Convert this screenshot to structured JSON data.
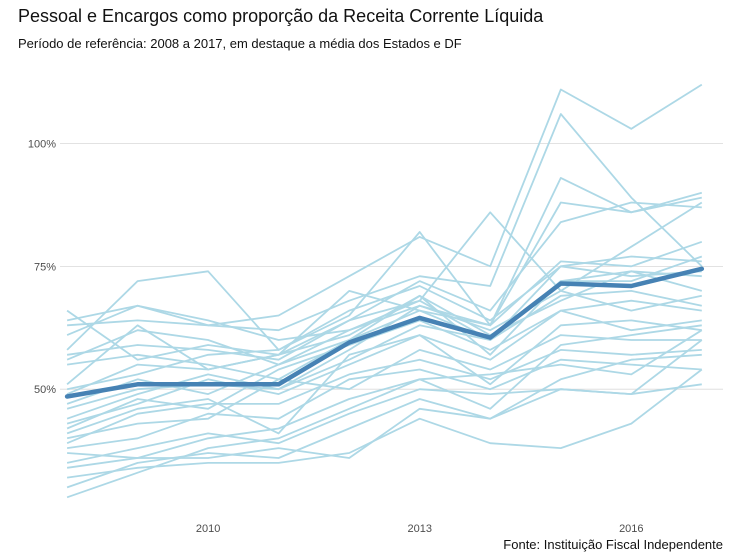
{
  "chart_data": {
    "type": "line",
    "title": "Pessoal e Encargos como proporção da Receita Corrente Líquida",
    "subtitle": "Período de referência: 2008 a 2017, em destaque a média dos Estados e DF",
    "caption": "Fonte: Instituição Fiscal Independente",
    "xlabel": "",
    "ylabel": "",
    "x": [
      2008,
      2009,
      2010,
      2011,
      2012,
      2013,
      2014,
      2015,
      2016,
      2017
    ],
    "xlim": [
      2007.9,
      2017.3
    ],
    "ylim": [
      25,
      117
    ],
    "x_ticks": [
      {
        "value": 2010,
        "label": "2010"
      },
      {
        "value": 2013,
        "label": "2013"
      },
      {
        "value": 2016,
        "label": "2016"
      }
    ],
    "y_ticks": [
      {
        "value": 50,
        "label": "50%"
      },
      {
        "value": 75,
        "label": "75%"
      },
      {
        "value": 100,
        "label": "100%"
      }
    ],
    "grid": true,
    "legend": "none",
    "colors": {
      "states": "#add8e6",
      "average": "#4682b4",
      "grid": "#d9d9d9"
    },
    "states": [
      [
        64,
        67,
        63,
        65,
        73,
        81,
        75,
        111,
        103,
        112
      ],
      [
        63,
        64,
        63,
        62,
        68,
        73,
        71,
        106,
        89,
        75
      ],
      [
        61,
        67,
        64,
        60,
        62,
        67,
        63,
        93,
        86,
        90
      ],
      [
        58,
        72,
        74,
        58,
        65,
        82,
        63,
        88,
        86,
        89
      ],
      [
        57,
        59,
        58,
        56,
        64,
        72,
        66,
        84,
        88,
        87
      ],
      [
        56,
        62,
        60,
        55,
        62,
        68,
        86,
        70,
        79,
        88
      ],
      [
        55,
        57,
        55,
        52,
        60,
        66,
        63,
        76,
        75,
        80
      ],
      [
        51,
        63,
        54,
        57,
        64,
        68,
        60,
        75,
        77,
        76
      ],
      [
        50,
        53,
        57,
        58,
        66,
        71,
        64,
        75,
        73,
        74
      ],
      [
        49,
        55,
        54,
        57,
        61,
        69,
        57,
        72,
        74,
        73
      ],
      [
        47,
        52,
        49,
        55,
        60,
        69,
        61,
        68,
        74,
        70
      ],
      [
        46,
        50,
        51,
        50,
        58,
        67,
        62,
        70,
        66,
        69
      ],
      [
        44,
        49,
        53,
        50,
        56,
        63,
        60,
        69,
        70,
        67
      ],
      [
        43,
        47,
        52,
        49,
        55,
        61,
        56,
        66,
        68,
        66
      ],
      [
        42,
        48,
        46,
        54,
        59,
        64,
        58,
        66,
        62,
        64
      ],
      [
        41,
        46,
        48,
        41,
        57,
        61,
        51,
        63,
        64,
        62
      ],
      [
        40,
        43,
        44,
        52,
        50,
        58,
        54,
        61,
        60,
        60
      ],
      [
        39,
        45,
        47,
        47,
        53,
        56,
        52,
        58,
        57,
        58
      ],
      [
        38,
        40,
        45,
        44,
        52,
        54,
        50,
        56,
        55,
        54
      ],
      [
        37,
        36,
        40,
        42,
        48,
        52,
        53,
        55,
        53,
        62
      ],
      [
        35,
        38,
        41,
        39,
        45,
        50,
        49,
        50,
        49,
        60
      ],
      [
        34,
        36,
        36,
        38,
        36,
        46,
        44,
        50,
        49,
        51
      ],
      [
        32,
        34,
        35,
        35,
        37,
        44,
        39,
        38,
        43,
        54
      ],
      [
        30,
        35,
        37,
        36,
        42,
        48,
        44,
        52,
        56,
        57
      ],
      [
        28,
        33,
        38,
        40,
        46,
        52,
        46,
        59,
        61,
        63
      ],
      [
        66,
        56,
        59,
        57,
        70,
        66,
        60,
        72,
        72,
        77
      ]
    ],
    "series": [
      {
        "name": "",
        "values": [
          48.5,
          51,
          51,
          51,
          59.5,
          64.5,
          60.5,
          71.5,
          71,
          74.5
        ]
      }
    ]
  }
}
